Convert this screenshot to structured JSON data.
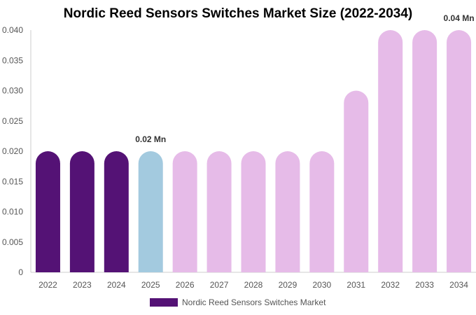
{
  "chart_data": {
    "type": "bar",
    "title": "Nordic Reed Sensors Switches Market Size (2022-2034)",
    "categories": [
      "2022",
      "2023",
      "2024",
      "2025",
      "2026",
      "2027",
      "2028",
      "2029",
      "2030",
      "2031",
      "2032",
      "2033",
      "2034"
    ],
    "series": [
      {
        "name": "Nordic Reed Sensors Switches Market",
        "values": [
          0.02,
          0.02,
          0.02,
          0.02,
          0.02,
          0.02,
          0.02,
          0.02,
          0.02,
          0.03,
          0.04,
          0.04,
          0.04
        ]
      }
    ],
    "bar_colors": [
      "#541275",
      "#541275",
      "#541275",
      "#a3cadf",
      "#e6bbe8",
      "#e6bbe8",
      "#e6bbe8",
      "#e6bbe8",
      "#e6bbe8",
      "#e6bbe8",
      "#e6bbe8",
      "#e6bbe8",
      "#e6bbe8"
    ],
    "data_labels": [
      {
        "category": "2025",
        "text": "0.02 Mn"
      },
      {
        "category": "2034",
        "text": "0.04 Mn"
      }
    ],
    "yticks": [
      "0",
      "0.005",
      "0.010",
      "0.015",
      "0.020",
      "0.025",
      "0.030",
      "0.035",
      "0.040"
    ],
    "ylim": [
      0,
      0.04
    ],
    "xlabel": "",
    "ylabel": "",
    "grid": false,
    "legend_position": "bottom",
    "legend_color": "#541275"
  }
}
